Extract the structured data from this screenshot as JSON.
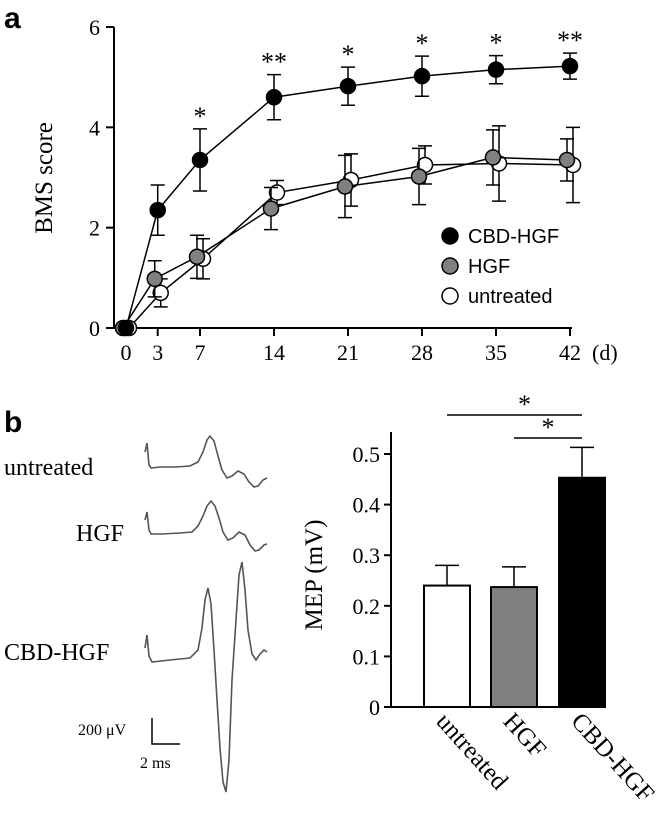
{
  "panel_a_label": "a",
  "panel_b_label": "b",
  "chart_data": [
    {
      "type": "line",
      "panel": "a",
      "xlabel": "",
      "x_unit": "(d)",
      "ylabel": "BMS score",
      "x": [
        0,
        3,
        7,
        14,
        21,
        28,
        35,
        42
      ],
      "xticks": [
        0,
        3,
        7,
        14,
        21,
        28,
        35,
        42
      ],
      "yticks": [
        0,
        2,
        4,
        6
      ],
      "ylim": [
        0,
        6
      ],
      "legend_position": "lower-right",
      "series": [
        {
          "name": "CBD-HGF",
          "marker": "filled-black",
          "values": [
            0,
            2.35,
            3.35,
            4.6,
            4.82,
            5.02,
            5.15,
            5.22
          ],
          "err": [
            0,
            0.5,
            0.62,
            0.45,
            0.38,
            0.4,
            0.28,
            0.26
          ]
        },
        {
          "name": "HGF",
          "marker": "filled-gray",
          "values": [
            0,
            0.98,
            1.42,
            2.38,
            2.82,
            3.02,
            3.4,
            3.35
          ],
          "err": [
            0,
            0.36,
            0.43,
            0.42,
            0.62,
            0.56,
            0.55,
            0.42
          ]
        },
        {
          "name": "untreated",
          "marker": "open",
          "values": [
            0,
            0.7,
            1.38,
            2.7,
            2.95,
            3.25,
            3.28,
            3.25
          ],
          "err": [
            0,
            0.28,
            0.4,
            0.24,
            0.52,
            0.38,
            0.75,
            0.75
          ]
        }
      ],
      "significance": [
        {
          "x": 7,
          "label": "*"
        },
        {
          "x": 14,
          "label": "**"
        },
        {
          "x": 21,
          "label": "*"
        },
        {
          "x": 28,
          "label": "*"
        },
        {
          "x": 35,
          "label": "*"
        },
        {
          "x": 42,
          "label": "**"
        }
      ]
    },
    {
      "type": "bar",
      "panel": "b",
      "ylabel": "MEP (mV)",
      "categories": [
        "untreated",
        "HGF",
        "CBD-HGF"
      ],
      "values": [
        0.24,
        0.237,
        0.453
      ],
      "err": [
        0.04,
        0.04,
        0.06
      ],
      "colors": [
        "#ffffff",
        "#808080",
        "#000000"
      ],
      "ylim": [
        0,
        0.5
      ],
      "yticks": [
        "0",
        "0.1",
        "0.2",
        "0.3",
        "0.4",
        "0.5"
      ],
      "significance": [
        {
          "from": 0,
          "to": 2,
          "label": "*"
        },
        {
          "from": 1,
          "to": 2,
          "label": "*"
        }
      ]
    }
  ],
  "traces": {
    "labels": [
      "untreated",
      "HGF",
      "CBD-HGF"
    ],
    "scale_voltage": "200 μV",
    "scale_time": "2 ms"
  }
}
